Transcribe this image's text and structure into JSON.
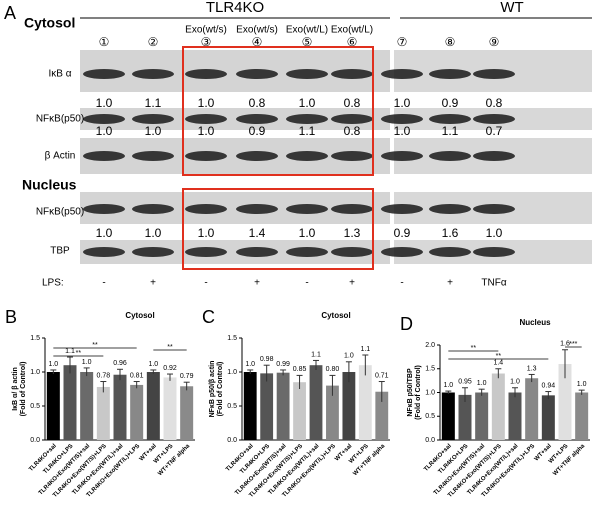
{
  "panel_a": {
    "label": "A",
    "group_headers": [
      "TLR4KO",
      "WT"
    ],
    "exo_labels": [
      "Exo(wt/s)",
      "Exo(wt/s)",
      "Exo(wt/L)",
      "Exo(wt/L)"
    ],
    "lanes": [
      "①",
      "②",
      "③",
      "④",
      "⑤",
      "⑥",
      "⑦",
      "⑧",
      "⑨"
    ],
    "cytosol": {
      "title": "Cytosol",
      "blots": [
        {
          "label": "IκB α",
          "quant": [
            "1.0",
            "1.1",
            "1.0",
            "0.8",
            "1.0",
            "0.8",
            "1.0",
            "0.9",
            "0.8"
          ]
        },
        {
          "label": "NFκB(p50)",
          "quant": [
            "1.0",
            "1.0",
            "1.0",
            "0.9",
            "1.1",
            "0.8",
            "1.0",
            "1.1",
            "0.7"
          ]
        },
        {
          "label": "β Actin"
        }
      ]
    },
    "nucleus": {
      "title": "Nucleus",
      "blots": [
        {
          "label": "NFκB(p50)",
          "quant": [
            "1.0",
            "1.0",
            "1.0",
            "1.4",
            "1.0",
            "1.3",
            "0.9",
            "1.6",
            "1.0"
          ]
        },
        {
          "label": "TBP"
        }
      ]
    },
    "treatment_label": "LPS:",
    "treatments": [
      "-",
      "+",
      "-",
      "+",
      "-",
      "+",
      "-",
      "+",
      "TNFα"
    ]
  },
  "chart_data": [
    {
      "type": "bar",
      "label": "B",
      "title": "Cytosol",
      "y_label": [
        "IκB α/ β actin",
        "(Fold of Control)"
      ],
      "categories": [
        "TLR4KO+sal",
        "TLR4KO+LPS",
        "TLR4KO+Exo(WT/S)+sal",
        "TLR4KO+Exo(WT/S)+LPS",
        "TLR4KO+Exo(WT/L)+sal",
        "TLR4KO+Exo(WT/L)+LPS",
        "WT+sal",
        "WT+LPS",
        "WT+TNF alpha"
      ],
      "values": [
        1.0,
        1.1,
        1.0,
        0.78,
        0.96,
        0.81,
        1.0,
        0.92,
        0.79
      ],
      "value_labels": [
        "1.0",
        "1.1",
        "1.0",
        "0.78",
        "0.96",
        "0.81",
        "1.0",
        "0.92",
        "0.79"
      ],
      "errors": [
        0.03,
        0.12,
        0.06,
        0.08,
        0.08,
        0.05,
        0.03,
        0.05,
        0.06
      ],
      "colors": [
        "#000000",
        "#555555",
        "#6a6a6a",
        "#c8c8c8",
        "#555555",
        "#888888",
        "#444444",
        "#e0e0e0",
        "#8a8a8a"
      ],
      "ylim": [
        0,
        1.5
      ],
      "yticks": [
        {
          "value": 0,
          "label": "0.0"
        },
        {
          "value": 0.5,
          "label": "0.5"
        },
        {
          "value": 1,
          "label": "1.0"
        },
        {
          "value": 1.5,
          "label": "1.5"
        }
      ],
      "significance": [
        "**",
        "**",
        "**"
      ]
    },
    {
      "type": "bar",
      "label": "C",
      "title": "Cytosol",
      "y_label": [
        "NFκB p50/β actin",
        "(Fold of Control)"
      ],
      "categories": [
        "TLR4KO+sal",
        "TLR4KO+LPS",
        "TLR4KO+Exo(WT/S)+sal",
        "TLR4KO+Exo(WT/S)+LPS",
        "TLR4KO+Exo(WT/L)+sal",
        "TLR4KO+Exo(WT/L)+LPS",
        "WT+sal",
        "WT+LPS",
        "WT+TNF alpha"
      ],
      "values": [
        1.0,
        0.98,
        0.99,
        0.85,
        1.1,
        0.8,
        1.0,
        1.1,
        0.71
      ],
      "value_labels": [
        "1.0",
        "0.98",
        "0.99",
        "0.85",
        "1.1",
        "0.80",
        "1.0",
        "1.1",
        "0.71"
      ],
      "errors": [
        0.03,
        0.12,
        0.04,
        0.1,
        0.07,
        0.15,
        0.15,
        0.15,
        0.15
      ],
      "colors": [
        "#000000",
        "#555555",
        "#6a6a6a",
        "#c8c8c8",
        "#555555",
        "#888888",
        "#444444",
        "#e0e0e0",
        "#8a8a8a"
      ],
      "ylim": [
        0,
        1.5
      ],
      "yticks": [
        {
          "value": 0,
          "label": "0.0"
        },
        {
          "value": 0.5,
          "label": "0.5"
        },
        {
          "value": 1,
          "label": "1.0"
        },
        {
          "value": 1.5,
          "label": "1.5"
        }
      ]
    },
    {
      "type": "bar",
      "label": "D",
      "title": "Nucleus",
      "y_label": [
        "NFκB p50/TBP",
        "(Fold of Control)"
      ],
      "categories": [
        "TLR4KO+sal",
        "TLR4KO+LPS",
        "TLR4KO+Exo(WT/S)+sal",
        "TLR4KO+Exo(WT/S)+LPS",
        "TLR4KO+Exo(WT/L)+sal",
        "TLR4KO+Exo(WT/L)+LPS",
        "WT+sal",
        "WT+LPS",
        "WT+TNF alpha"
      ],
      "values": [
        1.0,
        0.95,
        1.0,
        1.4,
        1.0,
        1.3,
        0.94,
        1.6,
        1.0
      ],
      "value_labels": [
        "1.0",
        "0.95",
        "1.0",
        "1.4",
        "1.0",
        "1.3",
        "0.94",
        "1.6",
        "1.0"
      ],
      "errors": [
        0.03,
        0.15,
        0.07,
        0.1,
        0.1,
        0.08,
        0.08,
        0.3,
        0.05
      ],
      "colors": [
        "#000000",
        "#555555",
        "#6a6a6a",
        "#c8c8c8",
        "#555555",
        "#888888",
        "#444444",
        "#e0e0e0",
        "#8a8a8a"
      ],
      "ylim": [
        0,
        2
      ],
      "yticks": [
        {
          "value": 0,
          "label": "0.0"
        },
        {
          "value": 0.5,
          "label": "0.5"
        },
        {
          "value": 1,
          "label": "1.0"
        },
        {
          "value": 1.5,
          "label": "1.5"
        },
        {
          "value": 2,
          "label": "2.0"
        }
      ],
      "significance": [
        "**",
        "**",
        "***"
      ]
    }
  ]
}
